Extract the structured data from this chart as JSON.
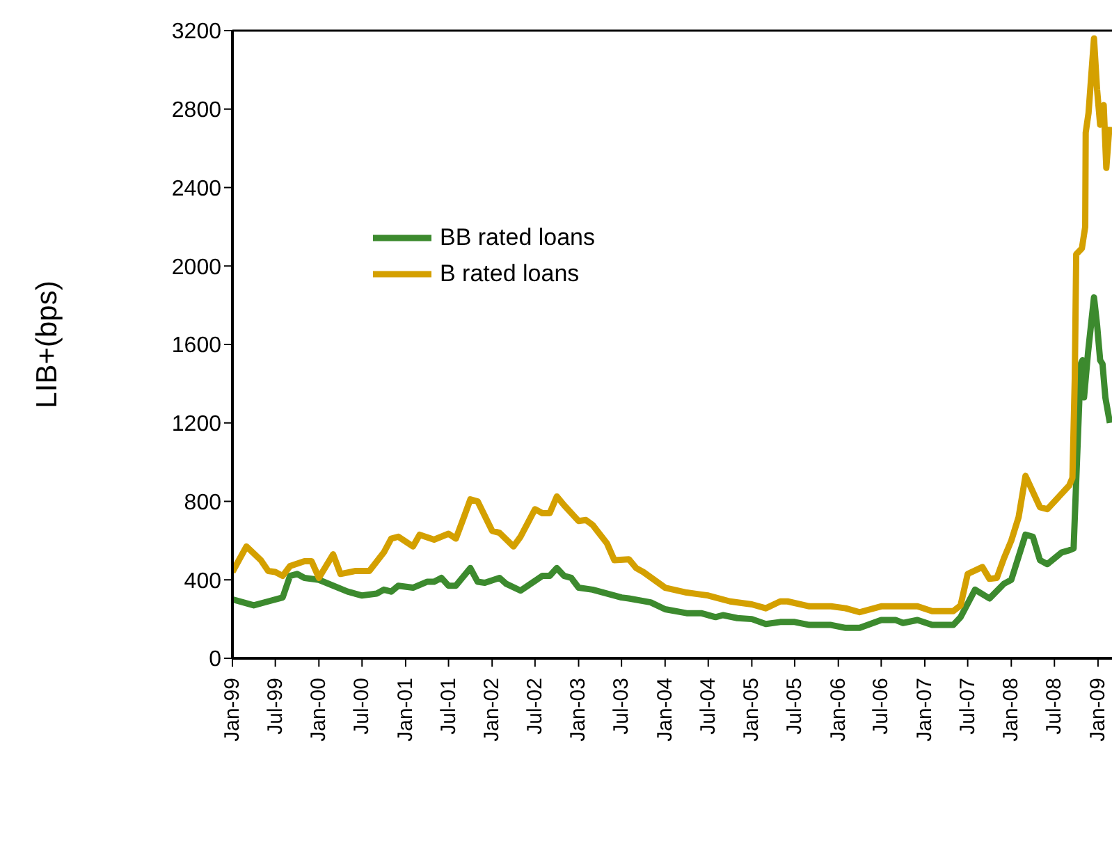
{
  "chart_data": {
    "type": "line",
    "ylabel": "LIB+(bps)",
    "xlim": [
      "1999-01",
      "2009-03"
    ],
    "ylim": [
      0,
      3200
    ],
    "yticks": [
      0,
      400,
      800,
      1200,
      1600,
      2000,
      2400,
      2800,
      3200
    ],
    "xticks": [
      {
        "value": "1999-01",
        "label": "Jan-99"
      },
      {
        "value": "1999-07",
        "label": "Jul-99"
      },
      {
        "value": "2000-01",
        "label": "Jan-00"
      },
      {
        "value": "2000-07",
        "label": "Jul-00"
      },
      {
        "value": "2001-01",
        "label": "Jan-01"
      },
      {
        "value": "2001-07",
        "label": "Jul-01"
      },
      {
        "value": "2002-01",
        "label": "Jan-02"
      },
      {
        "value": "2002-07",
        "label": "Jul-02"
      },
      {
        "value": "2003-01",
        "label": "Jan-03"
      },
      {
        "value": "2003-07",
        "label": "Jul-03"
      },
      {
        "value": "2004-01",
        "label": "Jan-04"
      },
      {
        "value": "2004-07",
        "label": "Jul-04"
      },
      {
        "value": "2005-01",
        "label": "Jan-05"
      },
      {
        "value": "2005-07",
        "label": "Jul-05"
      },
      {
        "value": "2006-01",
        "label": "Jan-06"
      },
      {
        "value": "2006-07",
        "label": "Jul-06"
      },
      {
        "value": "2007-01",
        "label": "Jan-07"
      },
      {
        "value": "2007-07",
        "label": "Jul-07"
      },
      {
        "value": "2008-01",
        "label": "Jan-08"
      },
      {
        "value": "2008-07",
        "label": "Jul-08"
      },
      {
        "value": "2009-01",
        "label": "Jan-09"
      }
    ],
    "legend": "top left",
    "marker": "none",
    "line_style": "solid",
    "series": [
      {
        "name": "BB rated loans",
        "color": "#3c8a2e",
        "x": [
          "1999-01",
          "1999-04",
          "1999-06",
          "1999-08",
          "1999-09",
          "1999-10",
          "1999-11",
          "2000-01",
          "2000-05",
          "2000-07",
          "2000-09",
          "2000-10",
          "2000-11",
          "2000-12",
          "2001-02",
          "2001-04",
          "2001-05",
          "2001-06",
          "2001-07",
          "2001-08",
          "2001-10",
          "2001-11",
          "2001-12",
          "2002-02",
          "2002-03",
          "2002-05",
          "2002-07",
          "2002-08",
          "2002-09",
          "2002-10",
          "2002-11",
          "2002-12",
          "2003-01",
          "2003-03",
          "2003-07",
          "2003-08",
          "2003-11",
          "2004-01",
          "2004-04",
          "2004-06",
          "2004-08",
          "2004-09",
          "2004-11",
          "2005-01",
          "2005-03",
          "2005-05",
          "2005-07",
          "2005-09",
          "2005-12",
          "2006-02",
          "2006-04",
          "2006-07",
          "2006-09",
          "2006-10",
          "2006-12",
          "2007-02",
          "2007-05",
          "2007-06",
          "2007-08",
          "2007-10",
          "2007-12",
          "2008-01",
          "2008-03",
          "2008-04",
          "2008-05",
          "2008-06",
          "2008-08",
          "2008-09",
          "2008-09-20",
          "2008-10-20",
          "2008-10-28",
          "2008-11-03",
          "2008-11-20",
          "2008-12-15",
          "2008-12-28",
          "2009-01-10",
          "2009-01-20",
          "2009-02-01",
          "2009-02-20"
        ],
        "values": [
          300,
          270,
          290,
          310,
          420,
          430,
          410,
          400,
          340,
          320,
          330,
          350,
          340,
          370,
          360,
          390,
          390,
          410,
          370,
          370,
          460,
          390,
          385,
          410,
          380,
          345,
          395,
          420,
          420,
          460,
          420,
          410,
          360,
          350,
          310,
          305,
          285,
          250,
          230,
          230,
          210,
          220,
          205,
          200,
          175,
          185,
          185,
          170,
          170,
          155,
          155,
          195,
          195,
          180,
          195,
          170,
          170,
          210,
          350,
          305,
          380,
          400,
          630,
          620,
          500,
          480,
          540,
          550,
          560,
          1500,
          1520,
          1330,
          1560,
          1840,
          1700,
          1520,
          1500,
          1330,
          1200
        ]
      },
      {
        "name": "B rated loans",
        "color": "#d4a000",
        "x": [
          "1999-01",
          "1999-03",
          "1999-05",
          "1999-06",
          "1999-07",
          "1999-08",
          "1999-09",
          "1999-11",
          "1999-12",
          "2000-01",
          "2000-03",
          "2000-04",
          "2000-06",
          "2000-08",
          "2000-10",
          "2000-11",
          "2000-12",
          "2001-02",
          "2001-03",
          "2001-05",
          "2001-07",
          "2001-08",
          "2001-09",
          "2001-10",
          "2001-11",
          "2002-01",
          "2002-02",
          "2002-04",
          "2002-05",
          "2002-07",
          "2002-08",
          "2002-09",
          "2002-10",
          "2002-11",
          "2003-01",
          "2003-02",
          "2003-03",
          "2003-05",
          "2003-06",
          "2003-08",
          "2003-09",
          "2003-10",
          "2004-01",
          "2004-04",
          "2004-06",
          "2004-07",
          "2004-10",
          "2005-01",
          "2005-03",
          "2005-05",
          "2005-06",
          "2005-09",
          "2005-12",
          "2006-02",
          "2006-04",
          "2006-07",
          "2006-12",
          "2007-02",
          "2007-05",
          "2007-06",
          "2007-07",
          "2007-09",
          "2007-10",
          "2007-11",
          "2007-12",
          "2008-01",
          "2008-02",
          "2008-03",
          "2008-05",
          "2008-06",
          "2008-08",
          "2008-09",
          "2008-09-15",
          "2008-09-25",
          "2008-10-01",
          "2008-10-25",
          "2008-11-08",
          "2008-11-10",
          "2008-11-22",
          "2008-12-15",
          "2008-12-28",
          "2009-01-10",
          "2009-01-25",
          "2009-02-05",
          "2009-02-18"
        ],
        "values": [
          440,
          570,
          500,
          445,
          440,
          420,
          470,
          495,
          495,
          410,
          530,
          430,
          445,
          445,
          540,
          610,
          620,
          570,
          630,
          605,
          635,
          610,
          710,
          810,
          800,
          650,
          640,
          570,
          620,
          760,
          740,
          740,
          825,
          780,
          700,
          705,
          680,
          585,
          500,
          505,
          460,
          440,
          360,
          335,
          325,
          320,
          290,
          275,
          255,
          290,
          290,
          265,
          265,
          255,
          235,
          265,
          265,
          240,
          240,
          270,
          430,
          465,
          405,
          410,
          510,
          600,
          720,
          930,
          770,
          760,
          840,
          880,
          920,
          1430,
          2060,
          2090,
          2200,
          2680,
          2780,
          3160,
          2900,
          2720,
          2820,
          2500,
          2710
        ]
      }
    ]
  }
}
